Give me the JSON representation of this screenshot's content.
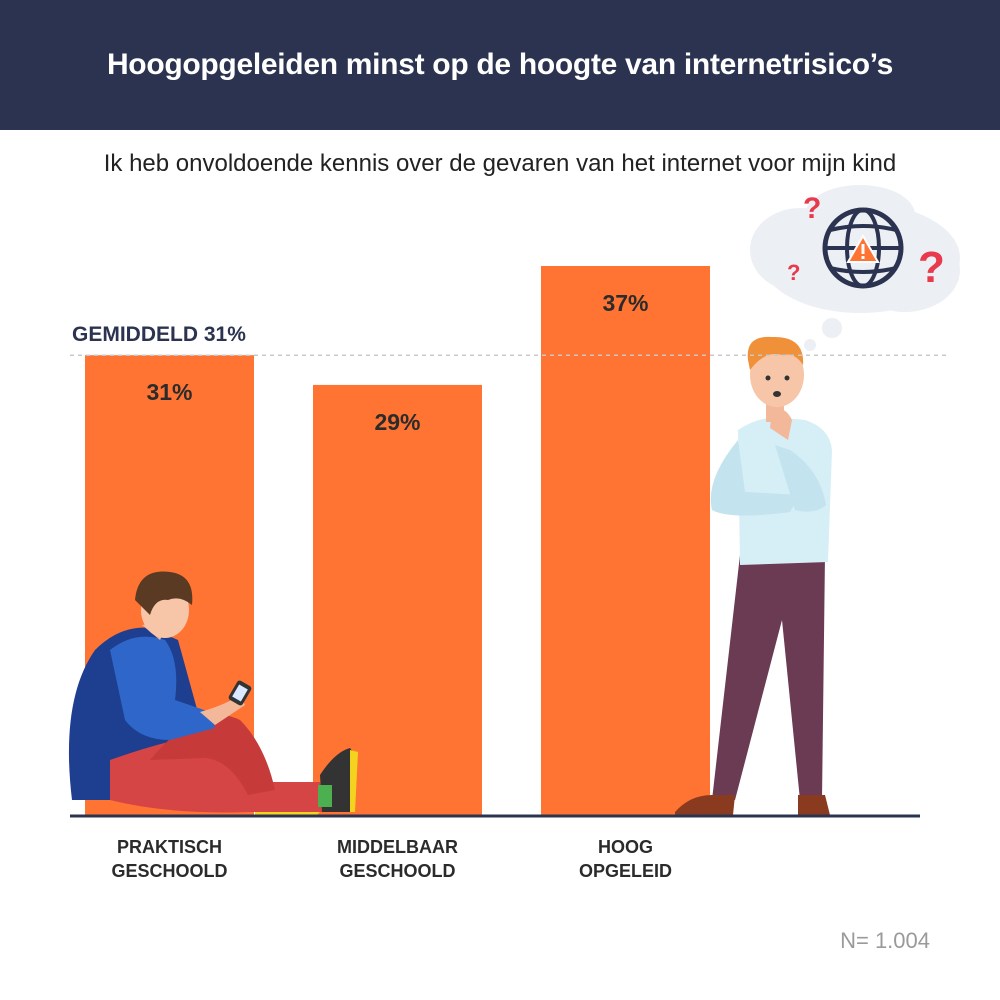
{
  "header": {
    "title": "Hoogopgeleiden minst op de hoogte van internetrisico’s"
  },
  "subtitle": "Ik heb onvoldoende kennis over de gevaren van het internet voor mijn kind",
  "footnote": "N= 1.004",
  "colors": {
    "header_bg": "#2b3350",
    "bar": "#ff7433",
    "axis": "#2b3350",
    "text_dark": "#222222",
    "question_mark": "#e8394d"
  },
  "chart_data": {
    "type": "bar",
    "categories": [
      [
        "PRAKTISCH",
        "GESCHOOLD"
      ],
      [
        "MIDDELBAAR",
        "GESCHOOLD"
      ],
      [
        "HOOG",
        "OPGELEID"
      ]
    ],
    "values": [
      31,
      29,
      37
    ],
    "value_labels": [
      "31%",
      "29%",
      "37%"
    ],
    "reference_line": {
      "label": "GEMIDDELD 31%",
      "value": 31
    },
    "ylim": [
      0,
      37
    ],
    "grid": false,
    "legend": "none"
  },
  "illustrations": {
    "left": "boy-sitting-with-phone",
    "right": "man-thinking",
    "thought_bubble_icon": "globe-warning-icon"
  }
}
